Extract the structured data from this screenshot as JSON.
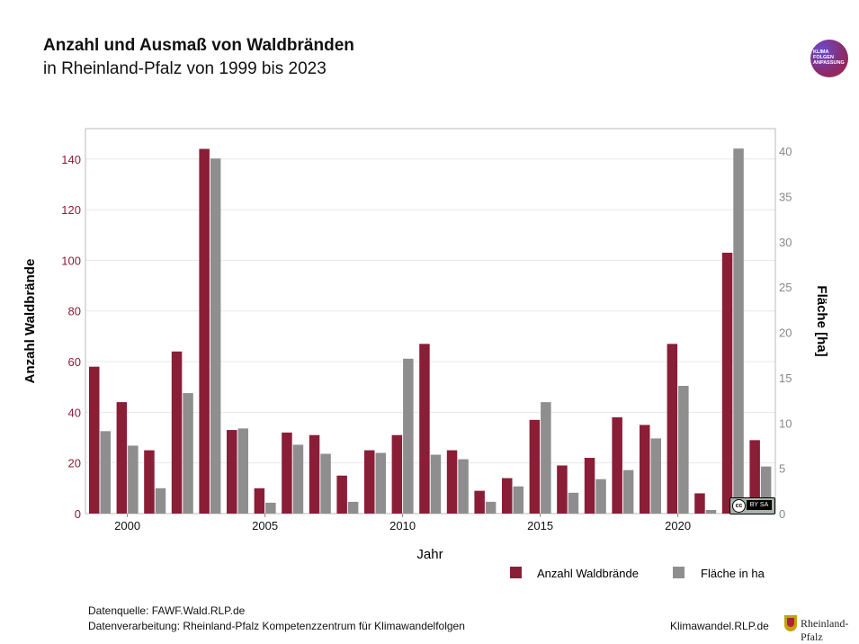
{
  "header": {
    "title": "Anzahl und Ausmaß von Waldbränden",
    "subtitle": "in Rheinland-Pfalz von 1999 bis 2023",
    "logo_text": "KLIMA FOLGEN ANPASSUNG"
  },
  "colors": {
    "primary": "#8a1e37",
    "secondary": "#8e8e8e",
    "grid": "#e8e8ee",
    "left_axis_text": "#8a1e37",
    "right_axis_text": "#888888"
  },
  "chart_data": {
    "type": "bar",
    "xlabel": "Jahr",
    "ylabel": "Anzahl Waldbrände",
    "y2label": "Fläche [ha]",
    "x": [
      1999,
      2000,
      2001,
      2002,
      2003,
      2004,
      2005,
      2006,
      2007,
      2008,
      2009,
      2010,
      2011,
      2012,
      2013,
      2014,
      2015,
      2016,
      2017,
      2018,
      2019,
      2020,
      2021,
      2022,
      2023
    ],
    "x_ticks": [
      2000,
      2005,
      2010,
      2015,
      2020
    ],
    "ylim": [
      0,
      152
    ],
    "y_ticks": [
      0,
      20,
      40,
      60,
      80,
      100,
      120,
      140
    ],
    "y2lim": [
      0,
      42.5
    ],
    "y2_ticks": [
      0,
      5,
      10,
      15,
      20,
      25,
      30,
      35,
      40
    ],
    "grid": true,
    "legend_position": "bottom-right",
    "series": [
      {
        "name": "Anzahl Waldbrände",
        "axis": "left",
        "color": "#8a1e37",
        "values": [
          58,
          44,
          25,
          64,
          144,
          33,
          10,
          32,
          31,
          15,
          25,
          31,
          67,
          25,
          9,
          14,
          37,
          19,
          22,
          38,
          35,
          67,
          8,
          103,
          29
        ]
      },
      {
        "name": "Fläche in ha",
        "axis": "right",
        "color": "#8e8e8e",
        "values": [
          9.1,
          7.5,
          2.8,
          13.3,
          39.2,
          9.4,
          1.2,
          7.6,
          6.6,
          1.3,
          6.7,
          17.1,
          6.5,
          6.0,
          1.3,
          3.0,
          12.3,
          2.3,
          3.8,
          4.8,
          8.3,
          14.1,
          0.4,
          40.3,
          5.2
        ]
      }
    ]
  },
  "footer": {
    "source": "Datenquelle: FAWF.Wald.RLP.de",
    "processing": "Datenverarbeitung: Rheinland-Pfalz Kompetenzzentrum für Klimawandelfolgen",
    "website": "Klimawandel.RLP.de",
    "rlp_logo_text": "Rheinland-Pfalz",
    "license_cc": "cc",
    "license_by": "BY SA"
  }
}
